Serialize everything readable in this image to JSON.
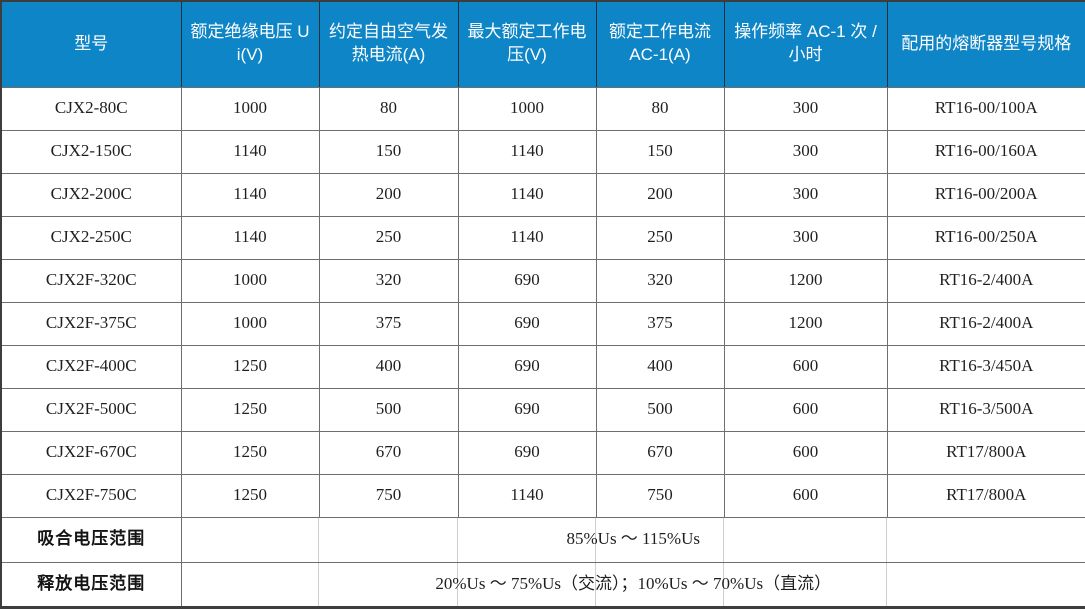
{
  "colors": {
    "header_bg": "#0d85c7",
    "header_text": "#ffffff",
    "grid_line": "#6e6e6e",
    "outer_border": "#3d3d3d",
    "body_text": "#1f1f1f"
  },
  "table": {
    "headers": [
      "型号",
      "额定绝缘电压 Ui(V)",
      "约定自由空气发热电流(A)",
      "最大额定工作电压(V)",
      "额定工作电流 AC-1(A)",
      "操作频率 AC-1 次 / 小时",
      "配用的熔断器型号规格"
    ],
    "rows": [
      [
        "CJX2-80C",
        "1000",
        "80",
        "1000",
        "80",
        "300",
        "RT16-00/100A"
      ],
      [
        "CJX2-150C",
        "1140",
        "150",
        "1140",
        "150",
        "300",
        "RT16-00/160A"
      ],
      [
        "CJX2-200C",
        "1140",
        "200",
        "1140",
        "200",
        "300",
        "RT16-00/200A"
      ],
      [
        "CJX2-250C",
        "1140",
        "250",
        "1140",
        "250",
        "300",
        "RT16-00/250A"
      ],
      [
        "CJX2F-320C",
        "1000",
        "320",
        "690",
        "320",
        "1200",
        "RT16-2/400A"
      ],
      [
        "CJX2F-375C",
        "1000",
        "375",
        "690",
        "375",
        "1200",
        "RT16-2/400A"
      ],
      [
        "CJX2F-400C",
        "1250",
        "400",
        "690",
        "400",
        "600",
        "RT16-3/450A"
      ],
      [
        "CJX2F-500C",
        "1250",
        "500",
        "690",
        "500",
        "600",
        "RT16-3/500A"
      ],
      [
        "CJX2F-670C",
        "1250",
        "670",
        "690",
        "670",
        "600",
        "RT17/800A"
      ],
      [
        "CJX2F-750C",
        "1250",
        "750",
        "1140",
        "750",
        "600",
        "RT17/800A"
      ]
    ],
    "footer_rows": [
      {
        "label": "吸合电压范围",
        "value": "85%Us ～ 115%Us"
      },
      {
        "label": "释放电压范围",
        "value": "20%Us ～ 75%Us（交流）；10%Us ～ 70%Us（直流）"
      }
    ]
  }
}
